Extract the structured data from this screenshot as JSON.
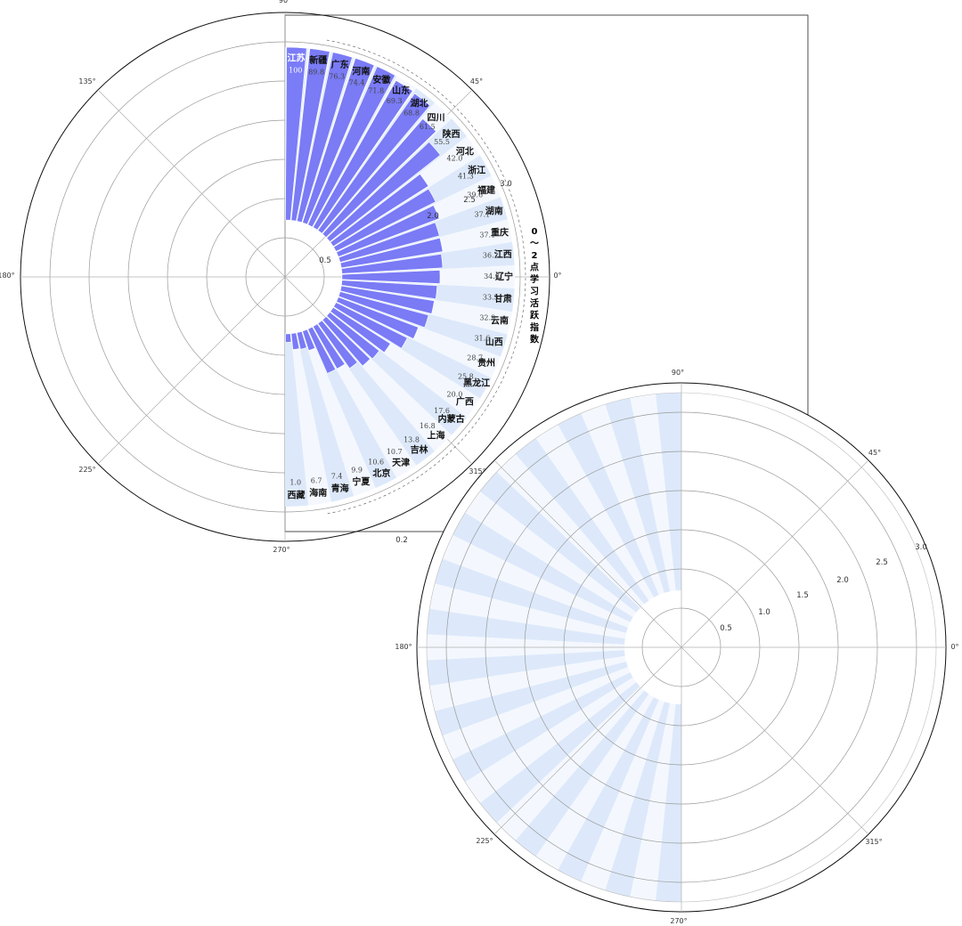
{
  "chart_data": [
    {
      "type": "polar-bar",
      "title": "0～2点学习活跃指数",
      "radial_ticks": [
        "0.5",
        "2.0",
        "2.5",
        "3.0"
      ],
      "angle_ticks": [
        "90°",
        "45°",
        "0°",
        "135°",
        "180°",
        "225°",
        "270°",
        "315°"
      ],
      "extra_tick": "0.2",
      "categories": [
        "江苏",
        "新疆",
        "广东",
        "河南",
        "安徽",
        "山东",
        "湖北",
        "四川",
        "陕西",
        "河北",
        "浙江",
        "福建",
        "湖南",
        "重庆",
        "江西",
        "辽宁",
        "甘肃",
        "云南",
        "山西",
        "贵州",
        "黑龙江",
        "广西",
        "内蒙古",
        "上海",
        "吉林",
        "天津",
        "北京",
        "宁夏",
        "青海",
        "海南",
        "西藏"
      ],
      "values": [
        100,
        89.8,
        76.3,
        74.4,
        71.8,
        69.3,
        68.8,
        61.5,
        55.5,
        42.0,
        41.3,
        39.6,
        37.1,
        37.1,
        36.2,
        34.8,
        33.5,
        32.9,
        31.6,
        28.7,
        25.8,
        20.0,
        17.6,
        16.8,
        13.8,
        10.7,
        10.6,
        9.9,
        7.4,
        6.7,
        1.0
      ],
      "value_labels": [
        "100",
        "89.8",
        "76.3",
        "74.4",
        "71.8",
        "69.3",
        "68.8",
        "61.5",
        "55.5",
        "42.0",
        "41.3",
        "39.6",
        "37.1",
        "37.1",
        "36.2",
        "34.8",
        "33.5",
        "32.9",
        "31.6",
        "28.7",
        "25.8",
        "20.0",
        "17.6",
        "16.8",
        "13.8",
        "10.7",
        "10.6",
        "9.9",
        "7.4",
        "6.7",
        "1.0"
      ],
      "colors": {
        "bar": "#7a7bf5",
        "bar_top": "#7b7cf7",
        "background_band": "#dde9fa",
        "band_alt": "#f4f8fe",
        "grid": "#9a9a9a"
      }
    },
    {
      "type": "polar-bar",
      "radial_ticks": [
        "0.5",
        "1.0",
        "1.5",
        "2.0",
        "2.5",
        "3.0"
      ],
      "angle_ticks": [
        "90°",
        "45°",
        "0°",
        "180°",
        "225°",
        "270°",
        "315°"
      ],
      "note_bands": 31
    }
  ]
}
